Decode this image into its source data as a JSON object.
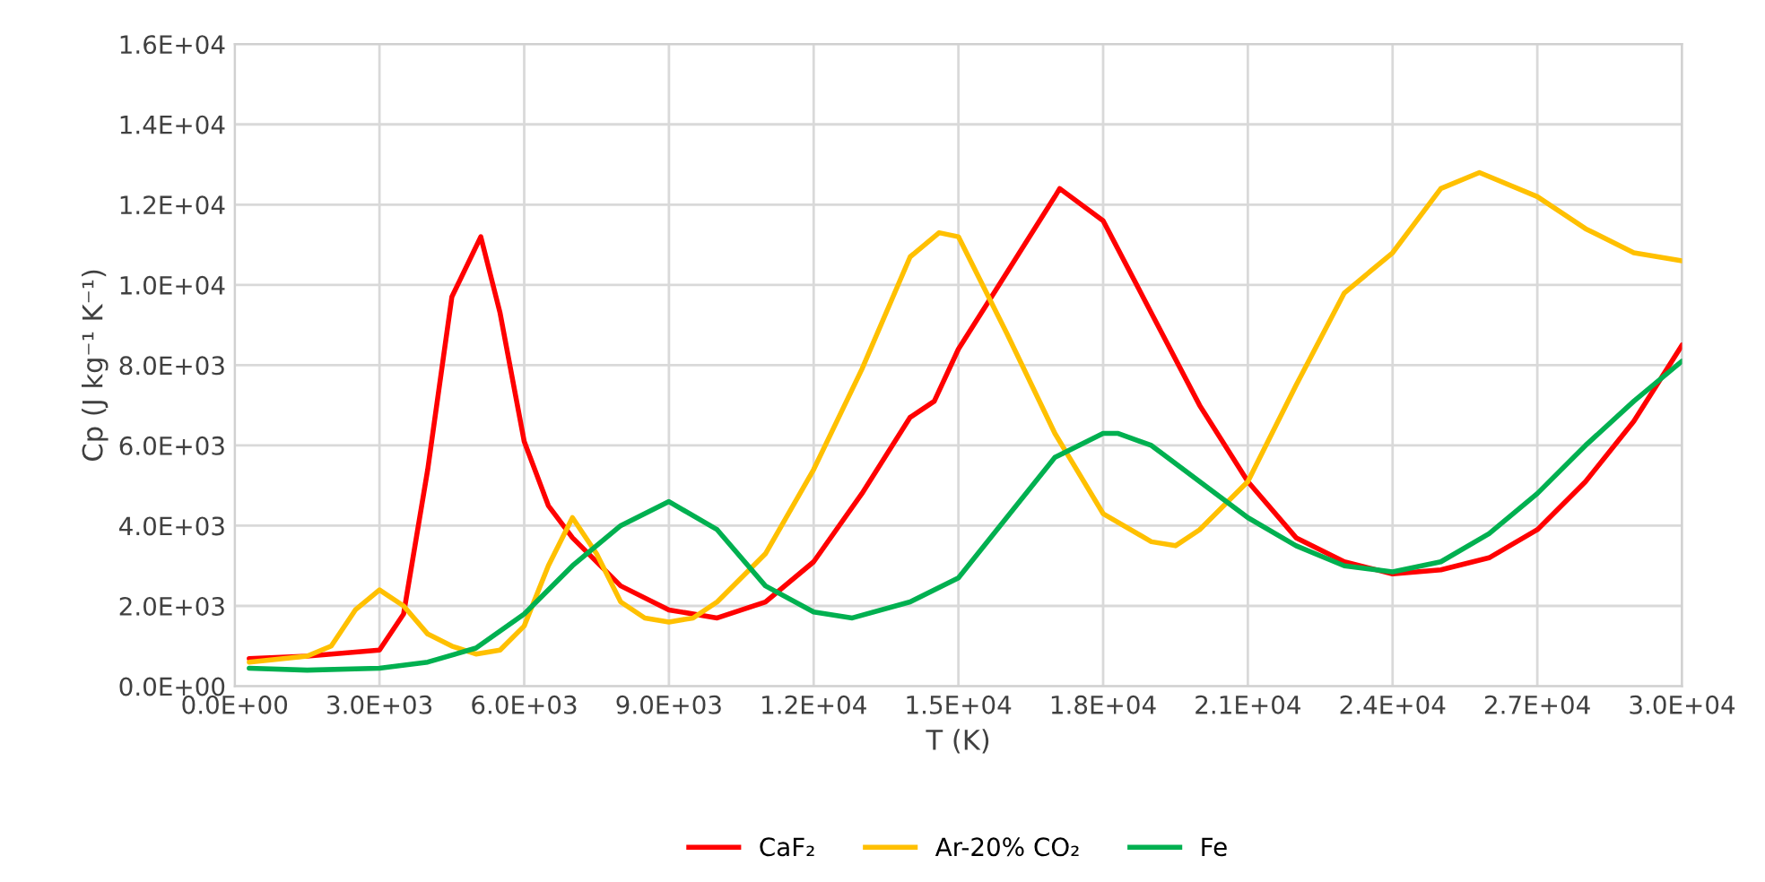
{
  "chart_data": {
    "type": "line",
    "xlabel": "T (K)",
    "ylabel": "Cp (J kg⁻¹ K⁻¹)",
    "xlim": [
      0,
      30000
    ],
    "ylim": [
      0,
      16000
    ],
    "xticks": [
      {
        "value": 0,
        "label": "0.0E+00"
      },
      {
        "value": 3000,
        "label": "3.0E+03"
      },
      {
        "value": 6000,
        "label": "6.0E+03"
      },
      {
        "value": 9000,
        "label": "9.0E+03"
      },
      {
        "value": 12000,
        "label": "1.2E+04"
      },
      {
        "value": 15000,
        "label": "1.5E+04"
      },
      {
        "value": 18000,
        "label": "1.8E+04"
      },
      {
        "value": 21000,
        "label": "2.1E+04"
      },
      {
        "value": 24000,
        "label": "2.4E+04"
      },
      {
        "value": 27000,
        "label": "2.7E+04"
      },
      {
        "value": 30000,
        "label": "3.0E+04"
      }
    ],
    "yticks": [
      {
        "value": 0,
        "label": "0.0E+00"
      },
      {
        "value": 2000,
        "label": "2.0E+03"
      },
      {
        "value": 4000,
        "label": "4.0E+03"
      },
      {
        "value": 6000,
        "label": "6.0E+03"
      },
      {
        "value": 8000,
        "label": "8.0E+03"
      },
      {
        "value": 10000,
        "label": "1.0E+04"
      },
      {
        "value": 12000,
        "label": "1.2E+04"
      },
      {
        "value": 14000,
        "label": "1.4E+04"
      },
      {
        "value": 16000,
        "label": "1.6E+04"
      }
    ],
    "grid": true,
    "legend": "bottom",
    "marker": "none",
    "line_style": "solid",
    "series": [
      {
        "name": "CaF₂",
        "color": "#ff0000",
        "x": [
          300,
          1500,
          3000,
          3500,
          4000,
          4500,
          5100,
          5500,
          6000,
          6500,
          7000,
          8000,
          9000,
          10000,
          11000,
          12000,
          13000,
          14000,
          14500,
          15000,
          16000,
          17000,
          17100,
          18000,
          19000,
          20000,
          21000,
          22000,
          23000,
          24000,
          25000,
          26000,
          27000,
          28000,
          29000,
          30000
        ],
        "values": [
          690,
          750,
          900,
          1800,
          5400,
          9700,
          11200,
          9300,
          6100,
          4500,
          3700,
          2500,
          1900,
          1700,
          2100,
          3100,
          4800,
          6700,
          7100,
          8400,
          10300,
          12200,
          12400,
          11600,
          9300,
          7000,
          5100,
          3700,
          3100,
          2800,
          2900,
          3200,
          3900,
          5100,
          6600,
          8500
        ]
      },
      {
        "name": "Ar-20% CO₂",
        "color": "#ffc000",
        "x": [
          300,
          1500,
          2000,
          2500,
          3000,
          3500,
          4000,
          4500,
          5000,
          5500,
          6000,
          6500,
          7000,
          7500,
          8000,
          8500,
          9000,
          9500,
          10000,
          11000,
          12000,
          13000,
          14000,
          14600,
          15000,
          16000,
          17000,
          18000,
          19000,
          19500,
          20000,
          21000,
          22000,
          23000,
          24000,
          25000,
          25800,
          27000,
          28000,
          29000,
          30000
        ],
        "values": [
          600,
          750,
          1000,
          1900,
          2400,
          2000,
          1300,
          1000,
          800,
          900,
          1500,
          3000,
          4200,
          3300,
          2100,
          1700,
          1600,
          1700,
          2100,
          3300,
          5400,
          7900,
          10700,
          11300,
          11200,
          8800,
          6300,
          4300,
          3600,
          3500,
          3900,
          5100,
          7500,
          9800,
          10800,
          12400,
          12800,
          12200,
          11400,
          10800,
          10600
        ]
      },
      {
        "name": "Fe",
        "color": "#00b050",
        "x": [
          300,
          1500,
          3000,
          4000,
          5000,
          6000,
          7000,
          8000,
          9000,
          10000,
          11000,
          12000,
          12800,
          14000,
          15000,
          16000,
          17000,
          18000,
          18300,
          19000,
          20000,
          21000,
          22000,
          23000,
          24000,
          25000,
          26000,
          27000,
          28000,
          29000,
          30000
        ],
        "values": [
          450,
          400,
          450,
          600,
          950,
          1800,
          3000,
          4000,
          4600,
          3900,
          2500,
          1850,
          1700,
          2100,
          2700,
          4200,
          5700,
          6300,
          6300,
          6000,
          5100,
          4200,
          3500,
          3000,
          2850,
          3100,
          3800,
          4800,
          6000,
          7100,
          8100
        ]
      }
    ]
  }
}
